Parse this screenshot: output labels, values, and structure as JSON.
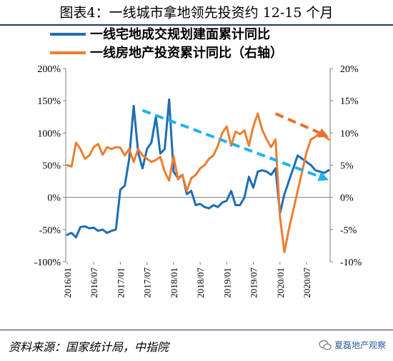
{
  "title": "图表4：一线城市拿地领先投资约 12-15 个月",
  "source": "资料来源：国家统计局，中指院",
  "watermark": "夏磊地产观察",
  "chart_data": {
    "type": "line",
    "x": [
      "2016/01",
      "2016/02",
      "2016/03",
      "2016/04",
      "2016/05",
      "2016/06",
      "2016/07",
      "2016/08",
      "2016/09",
      "2016/10",
      "2016/11",
      "2016/12",
      "2017/01",
      "2017/02",
      "2017/03",
      "2017/04",
      "2017/05",
      "2017/06",
      "2017/07",
      "2017/08",
      "2017/09",
      "2017/10",
      "2017/11",
      "2017/12",
      "2018/01",
      "2018/02",
      "2018/03",
      "2018/04",
      "2018/05",
      "2018/06",
      "2018/07",
      "2018/08",
      "2018/09",
      "2018/10",
      "2018/11",
      "2018/12",
      "2019/01",
      "2019/02",
      "2019/03",
      "2019/04",
      "2019/05",
      "2019/06",
      "2019/07",
      "2019/08",
      "2019/09",
      "2019/10",
      "2019/11",
      "2019/12",
      "2020/01",
      "2020/02",
      "2020/03",
      "2020/04",
      "2020/05",
      "2020/06",
      "2020/07",
      "2020/08",
      "2020/09",
      "2020/10",
      "2020/11",
      "2020/12"
    ],
    "xticks": [
      "2016/01",
      "2016/07",
      "2017/01",
      "2017/07",
      "2018/01",
      "2018/07",
      "2019/01",
      "2019/07",
      "2020/01",
      "2020/07"
    ],
    "yleft": {
      "ylim": [
        -100,
        200
      ],
      "ticks": [
        "-100%",
        "-50%",
        "0%",
        "50%",
        "100%",
        "150%",
        "200%"
      ]
    },
    "yright": {
      "ylim": [
        -10,
        20
      ],
      "ticks": [
        "-10%",
        "-5%",
        "0%",
        "5%",
        "10%",
        "15%",
        "20%"
      ]
    },
    "legend_position": "top",
    "series": [
      {
        "name": "一线宅地成交规划建面累计同比",
        "axis": "left",
        "color": "#1f6db5",
        "values": [
          -58,
          -55,
          -62,
          -46,
          -45,
          -48,
          -47,
          -52,
          -50,
          -55,
          -52,
          -50,
          12,
          18,
          60,
          142,
          70,
          45,
          75,
          85,
          125,
          68,
          75,
          152,
          40,
          30,
          35,
          5,
          10,
          -12,
          -10,
          -15,
          -17,
          -12,
          -15,
          -8,
          -5,
          10,
          -12,
          -12,
          0,
          32,
          15,
          40,
          42,
          40,
          35,
          45,
          -25,
          5,
          25,
          45,
          65,
          60,
          55,
          50,
          42,
          40,
          38,
          42
        ]
      },
      {
        "name": "一线房地产投资累计同比（右轴）",
        "axis": "right",
        "color": "#ed7d31",
        "values": [
          5.0,
          4.8,
          8.5,
          7.5,
          6.0,
          6.5,
          7.8,
          8.3,
          6.6,
          7.8,
          7.5,
          7.8,
          7.7,
          6.5,
          7.5,
          5.5,
          7.5,
          6.5,
          6.0,
          5.5,
          5.8,
          6.3,
          4.0,
          2.6,
          6.4,
          2.8,
          3.5,
          1.0,
          3.0,
          3.5,
          4.5,
          5.0,
          6.0,
          6.5,
          8.0,
          10.0,
          11.0,
          8.0,
          10.2,
          9.8,
          10.4,
          8.0,
          11.0,
          13.0,
          10.5,
          9.0,
          7.8,
          9.0,
          -3.0,
          -8.5,
          -5.0,
          -2.0,
          1.0,
          4.0,
          7.0,
          9.0,
          9.4,
          10.0,
          9.5,
          9.0
        ]
      }
    ],
    "annotations": [
      {
        "type": "dashed-arrow",
        "color": "#1fb3e8",
        "axis": "left",
        "from": [
          "2017/06",
          135
        ],
        "to": [
          "2020/12",
          27
        ]
      },
      {
        "type": "dashed-arrow",
        "color": "#e8702a",
        "axis": "right",
        "from": [
          "2019/12",
          13.0
        ],
        "to": [
          "2020/12",
          9.4
        ]
      }
    ]
  }
}
